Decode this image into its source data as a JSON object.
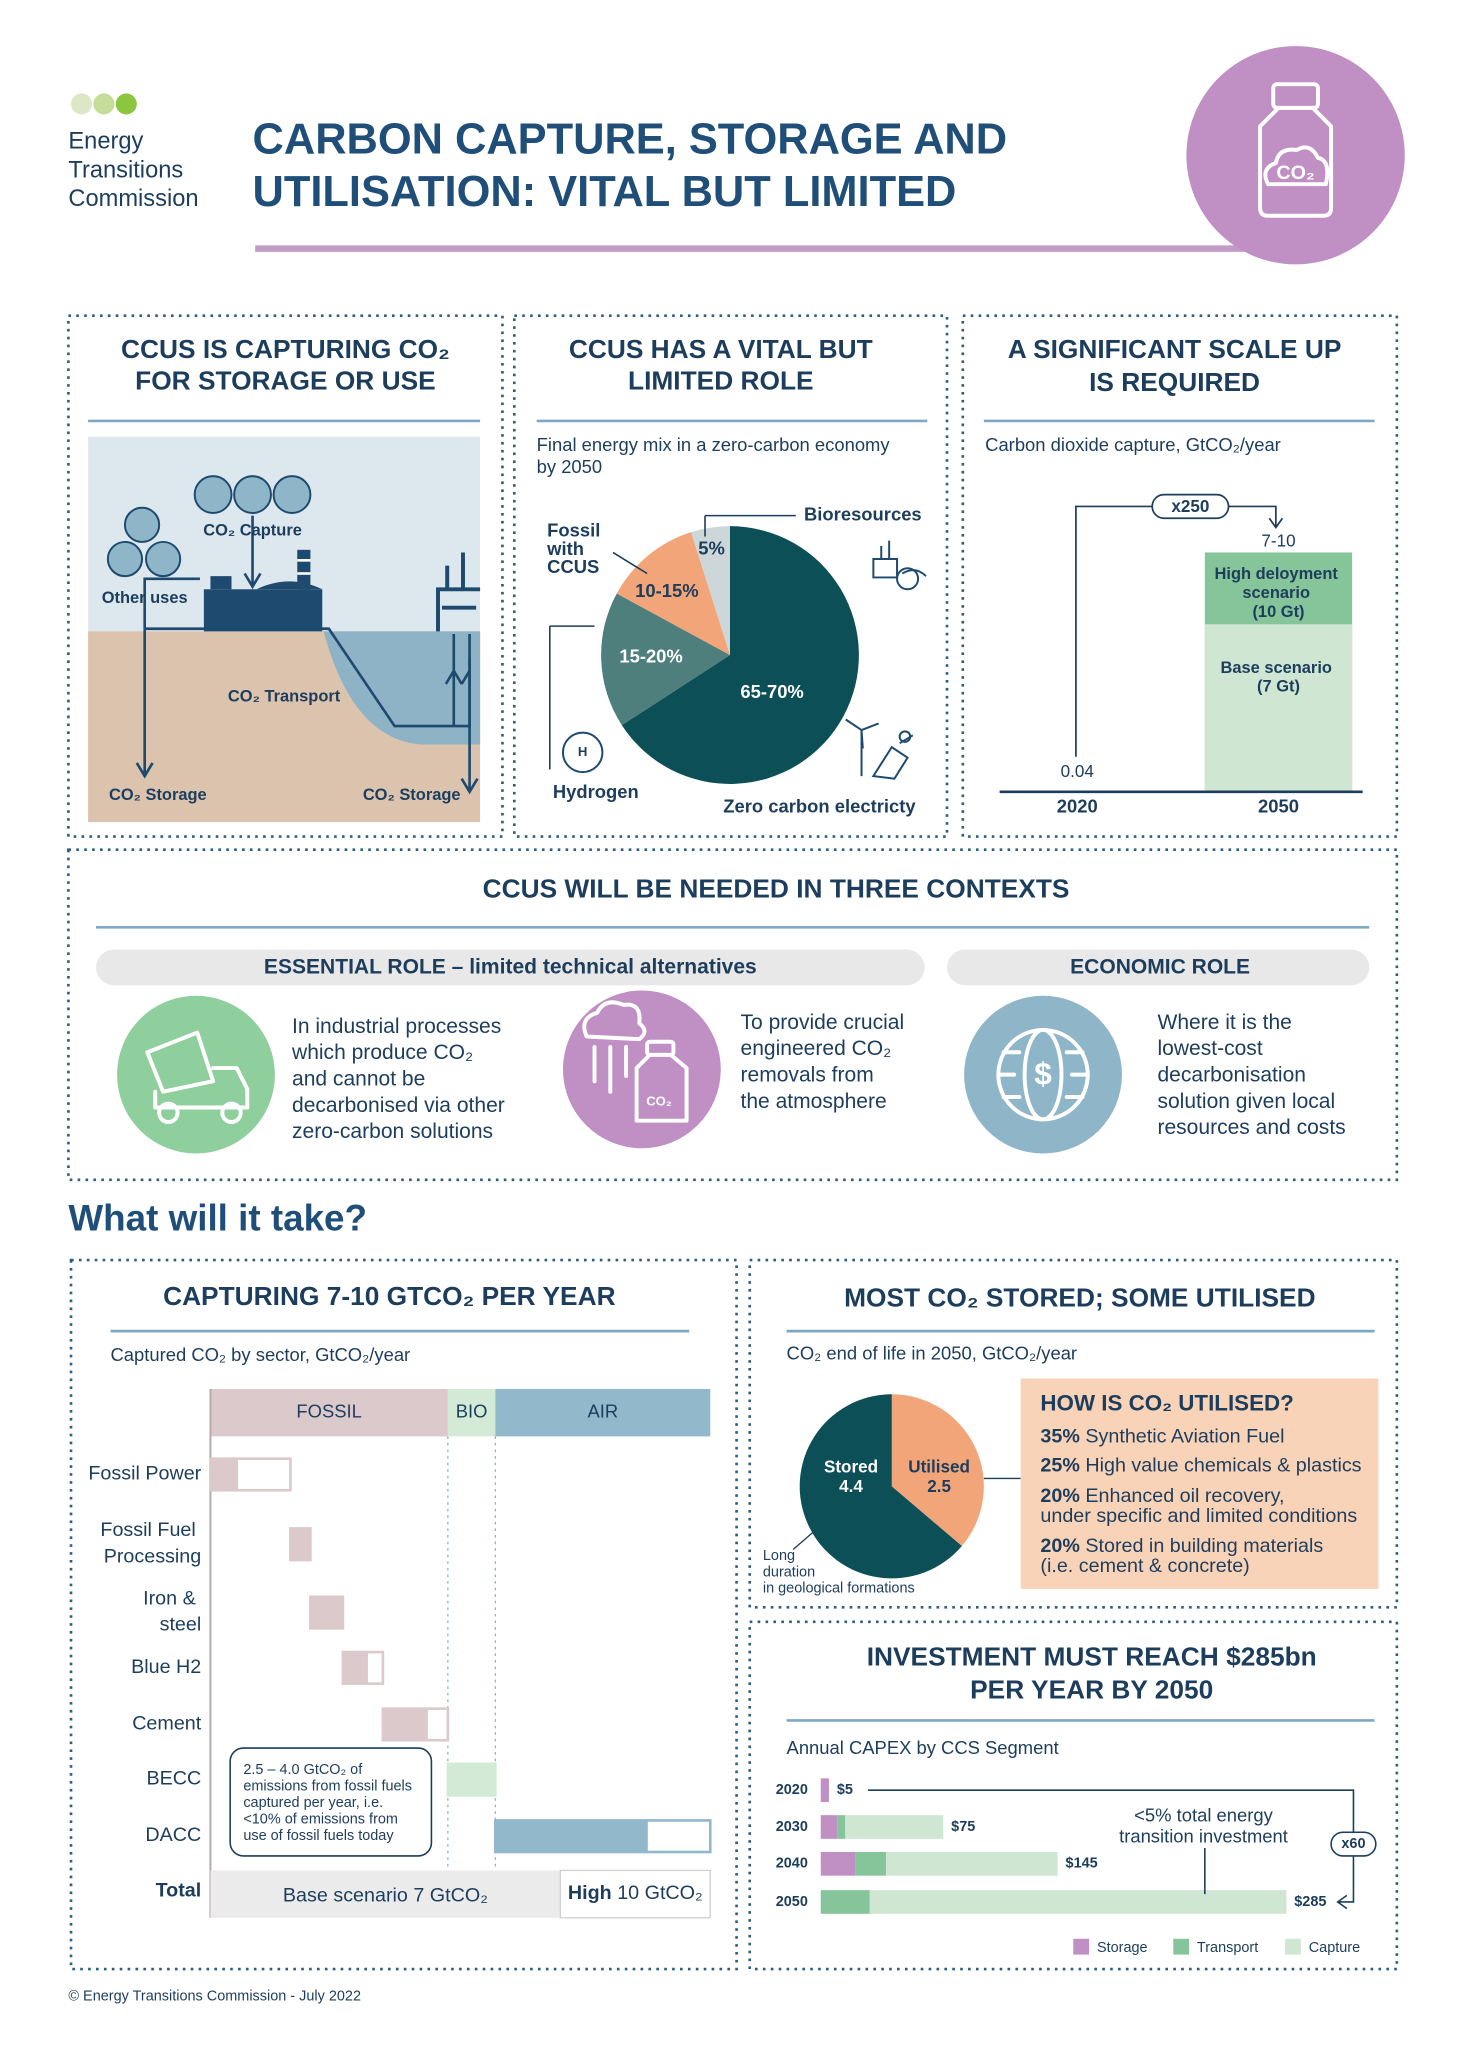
{
  "header": {
    "logo": [
      "Energy",
      "Transitions",
      "Commission"
    ],
    "title": [
      "CARBON CAPTURE, STORAGE AND",
      "UTILISATION: VITAL BUT LIMITED"
    ],
    "icon_label": "CO₂"
  },
  "capturing": {
    "title": [
      "CCUS IS CAPTURING CO₂",
      "FOR STORAGE OR USE"
    ],
    "labels": {
      "capture": "CO₂ Capture",
      "other_uses": "Other uses",
      "transport": "CO₂ Transport",
      "storage_left": "CO₂ Storage",
      "storage_right": "CO₂ Storage"
    }
  },
  "role": {
    "title": [
      "CCUS HAS A VITAL BUT",
      "LIMITED ROLE"
    ],
    "subtitle": [
      "Final energy mix in a zero-carbon economy",
      "by 2050"
    ],
    "hydrogen_icon": "H",
    "chart_data": {
      "type": "pie",
      "categories": [
        "Zero carbon electricty",
        "Hydrogen",
        "Fossil with CCUS",
        "Bioresources"
      ],
      "values": [
        67.5,
        17.5,
        12.5,
        5
      ],
      "value_labels": [
        "65-70%",
        "15-20%",
        "10-15%",
        "5%"
      ],
      "colors": [
        "#0c4f57",
        "#4e7f7d",
        "#f3a57a",
        "#cdd7d9"
      ]
    }
  },
  "scale": {
    "title": [
      "A SIGNIFICANT SCALE UP",
      "IS REQUIRED"
    ],
    "subtitle": "Carbon dioxide capture, GtCO₂/year",
    "chart_data": {
      "type": "bar",
      "categories": [
        "2020",
        "2050"
      ],
      "series": [
        {
          "name": "High deloyment scenario (10 Gt)",
          "color": "#86c49a",
          "values": [
            null,
            10
          ]
        },
        {
          "name": "Base scenario (7 Gt)",
          "color": "#cfe6d3",
          "values": [
            0.04,
            7
          ]
        }
      ],
      "value_labels": [
        "0.04",
        "7-10"
      ],
      "annotation": "x250"
    }
  },
  "contexts": {
    "title": "CCUS WILL BE NEEDED IN THREE CONTEXTS",
    "groups": [
      "ESSENTIAL ROLE – limited technical alternatives",
      "ECONOMIC ROLE"
    ],
    "icon_symbol": "$",
    "items": [
      [
        "In industrial processes",
        "which produce CO₂",
        "and cannot be",
        "decarbonised via other",
        "zero-carbon solutions"
      ],
      [
        "To provide crucial",
        "engineered CO₂",
        "removals from",
        "the atmosphere"
      ],
      [
        "Where it is the",
        "lowest-cost",
        "decarbonisation",
        "solution given local",
        "resources and costs"
      ]
    ]
  },
  "heading": "What will it take?",
  "sectors": {
    "title": "CAPTURING 7-10 GTCO₂ PER YEAR",
    "subtitle": "Captured CO₂ by sector, GtCO₂/year",
    "chart_data": {
      "type": "waterfall",
      "groups": [
        "FOSSIL",
        "BIO",
        "AIR"
      ],
      "group_colors": [
        "#dbc9cc",
        "#d3ead6",
        "#92b8cb"
      ],
      "category_groups": [
        0,
        0,
        0,
        0,
        0,
        1,
        2
      ],
      "categories": [
        "Fossil Power",
        "Fossil Fuel Processing",
        "Iron & steel",
        "Blue H2",
        "Cement",
        "BECC",
        "DACC"
      ],
      "series": [
        {
          "name": "Base scenario",
          "values": [
            0.55,
            0.4,
            0.65,
            0.5,
            0.9,
            0.95,
            3.05
          ]
        },
        {
          "name": "High",
          "values": [
            1.6,
            0.4,
            0.65,
            0.8,
            1.3,
            0.95,
            4.3
          ]
        }
      ],
      "total_label": "Total",
      "totals": [
        "7 GtCO₂",
        "10 GtCO₂"
      ],
      "note": [
        "2.5 – 4.0 GtCO₂ of",
        "emissions from fossil fuels",
        "captured per year, i.e.",
        "<10% of emissions from",
        "use of fossil fuels today"
      ]
    }
  },
  "end_of_life": {
    "title": "MOST CO₂ STORED; SOME UTILISED",
    "subtitle": "CO₂ end of life in 2050, GtCO₂/year",
    "chart_data": {
      "type": "pie",
      "categories": [
        "Stored",
        "Utilised"
      ],
      "values": [
        4.4,
        2.5
      ],
      "colors": [
        "#0c4f57",
        "#f3a57a"
      ],
      "note": [
        "Long",
        "duration",
        "in geological formations"
      ]
    },
    "uses": {
      "title": "HOW IS CO₂ UTILISED?",
      "items": [
        {
          "share": "35%",
          "text": [
            "Synthetic Aviation Fuel"
          ]
        },
        {
          "share": "25%",
          "text": [
            "High value chemicals & plastics"
          ]
        },
        {
          "share": "20%",
          "text": [
            "Enhanced oil recovery,",
            "under specific and limited conditions"
          ]
        },
        {
          "share": "20%",
          "text": [
            "Stored in building materials",
            "(i.e. cement & concrete)"
          ]
        }
      ]
    }
  },
  "investment": {
    "title": [
      "INVESTMENT MUST REACH $285bn",
      "PER YEAR BY 2050"
    ],
    "subtitle": "Annual CAPEX by CCS Segment",
    "chart_data": {
      "type": "stacked_bar_h",
      "categories": [
        "2020",
        "2030",
        "2040",
        "2050"
      ],
      "series": [
        {
          "name": "Storage",
          "color": "#c08fc4",
          "values": [
            5,
            10,
            21,
            0
          ]
        },
        {
          "name": "Transport",
          "color": "#86c49a",
          "values": [
            0,
            5,
            19,
            30
          ]
        },
        {
          "name": "Capture",
          "color": "#cfe6d3",
          "values": [
            0,
            60,
            105,
            255
          ]
        }
      ],
      "value_labels": [
        "$5",
        "$75",
        "$145",
        "$285"
      ],
      "annotation": [
        "<5% total energy",
        "transition investment"
      ],
      "multiplier": "x60"
    }
  },
  "footer": "© Energy Transitions Commission - July 2022"
}
